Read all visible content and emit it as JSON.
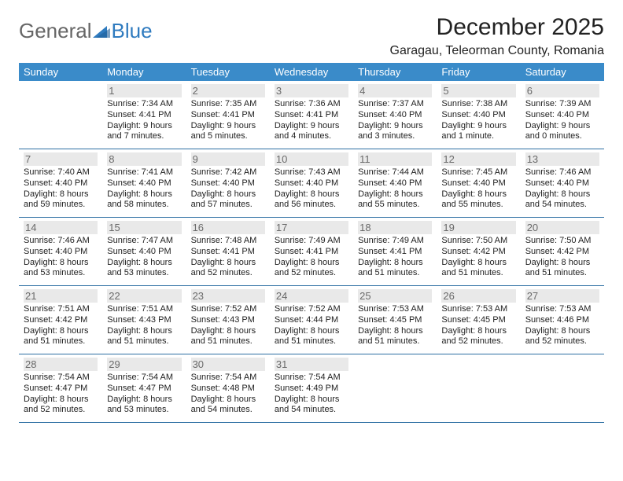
{
  "branding": {
    "word1": "General",
    "word2": "Blue",
    "triangle_color": "#2f7bbf"
  },
  "title": "December 2025",
  "location": "Garagau, Teleorman County, Romania",
  "colors": {
    "header_bg": "#3a8bc9",
    "header_text": "#ffffff",
    "daynum_bg": "#e9e9e9",
    "daynum_text": "#6a6a6a",
    "rule": "#2d6fa3",
    "body_text": "#222222",
    "page_bg": "#ffffff"
  },
  "days_of_week": [
    "Sunday",
    "Monday",
    "Tuesday",
    "Wednesday",
    "Thursday",
    "Friday",
    "Saturday"
  ],
  "weeks": [
    [
      null,
      {
        "n": "1",
        "sr": "Sunrise: 7:34 AM",
        "ss": "Sunset: 4:41 PM",
        "d1": "Daylight: 9 hours",
        "d2": "and 7 minutes."
      },
      {
        "n": "2",
        "sr": "Sunrise: 7:35 AM",
        "ss": "Sunset: 4:41 PM",
        "d1": "Daylight: 9 hours",
        "d2": "and 5 minutes."
      },
      {
        "n": "3",
        "sr": "Sunrise: 7:36 AM",
        "ss": "Sunset: 4:41 PM",
        "d1": "Daylight: 9 hours",
        "d2": "and 4 minutes."
      },
      {
        "n": "4",
        "sr": "Sunrise: 7:37 AM",
        "ss": "Sunset: 4:40 PM",
        "d1": "Daylight: 9 hours",
        "d2": "and 3 minutes."
      },
      {
        "n": "5",
        "sr": "Sunrise: 7:38 AM",
        "ss": "Sunset: 4:40 PM",
        "d1": "Daylight: 9 hours",
        "d2": "and 1 minute."
      },
      {
        "n": "6",
        "sr": "Sunrise: 7:39 AM",
        "ss": "Sunset: 4:40 PM",
        "d1": "Daylight: 9 hours",
        "d2": "and 0 minutes."
      }
    ],
    [
      {
        "n": "7",
        "sr": "Sunrise: 7:40 AM",
        "ss": "Sunset: 4:40 PM",
        "d1": "Daylight: 8 hours",
        "d2": "and 59 minutes."
      },
      {
        "n": "8",
        "sr": "Sunrise: 7:41 AM",
        "ss": "Sunset: 4:40 PM",
        "d1": "Daylight: 8 hours",
        "d2": "and 58 minutes."
      },
      {
        "n": "9",
        "sr": "Sunrise: 7:42 AM",
        "ss": "Sunset: 4:40 PM",
        "d1": "Daylight: 8 hours",
        "d2": "and 57 minutes."
      },
      {
        "n": "10",
        "sr": "Sunrise: 7:43 AM",
        "ss": "Sunset: 4:40 PM",
        "d1": "Daylight: 8 hours",
        "d2": "and 56 minutes."
      },
      {
        "n": "11",
        "sr": "Sunrise: 7:44 AM",
        "ss": "Sunset: 4:40 PM",
        "d1": "Daylight: 8 hours",
        "d2": "and 55 minutes."
      },
      {
        "n": "12",
        "sr": "Sunrise: 7:45 AM",
        "ss": "Sunset: 4:40 PM",
        "d1": "Daylight: 8 hours",
        "d2": "and 55 minutes."
      },
      {
        "n": "13",
        "sr": "Sunrise: 7:46 AM",
        "ss": "Sunset: 4:40 PM",
        "d1": "Daylight: 8 hours",
        "d2": "and 54 minutes."
      }
    ],
    [
      {
        "n": "14",
        "sr": "Sunrise: 7:46 AM",
        "ss": "Sunset: 4:40 PM",
        "d1": "Daylight: 8 hours",
        "d2": "and 53 minutes."
      },
      {
        "n": "15",
        "sr": "Sunrise: 7:47 AM",
        "ss": "Sunset: 4:40 PM",
        "d1": "Daylight: 8 hours",
        "d2": "and 53 minutes."
      },
      {
        "n": "16",
        "sr": "Sunrise: 7:48 AM",
        "ss": "Sunset: 4:41 PM",
        "d1": "Daylight: 8 hours",
        "d2": "and 52 minutes."
      },
      {
        "n": "17",
        "sr": "Sunrise: 7:49 AM",
        "ss": "Sunset: 4:41 PM",
        "d1": "Daylight: 8 hours",
        "d2": "and 52 minutes."
      },
      {
        "n": "18",
        "sr": "Sunrise: 7:49 AM",
        "ss": "Sunset: 4:41 PM",
        "d1": "Daylight: 8 hours",
        "d2": "and 51 minutes."
      },
      {
        "n": "19",
        "sr": "Sunrise: 7:50 AM",
        "ss": "Sunset: 4:42 PM",
        "d1": "Daylight: 8 hours",
        "d2": "and 51 minutes."
      },
      {
        "n": "20",
        "sr": "Sunrise: 7:50 AM",
        "ss": "Sunset: 4:42 PM",
        "d1": "Daylight: 8 hours",
        "d2": "and 51 minutes."
      }
    ],
    [
      {
        "n": "21",
        "sr": "Sunrise: 7:51 AM",
        "ss": "Sunset: 4:42 PM",
        "d1": "Daylight: 8 hours",
        "d2": "and 51 minutes."
      },
      {
        "n": "22",
        "sr": "Sunrise: 7:51 AM",
        "ss": "Sunset: 4:43 PM",
        "d1": "Daylight: 8 hours",
        "d2": "and 51 minutes."
      },
      {
        "n": "23",
        "sr": "Sunrise: 7:52 AM",
        "ss": "Sunset: 4:43 PM",
        "d1": "Daylight: 8 hours",
        "d2": "and 51 minutes."
      },
      {
        "n": "24",
        "sr": "Sunrise: 7:52 AM",
        "ss": "Sunset: 4:44 PM",
        "d1": "Daylight: 8 hours",
        "d2": "and 51 minutes."
      },
      {
        "n": "25",
        "sr": "Sunrise: 7:53 AM",
        "ss": "Sunset: 4:45 PM",
        "d1": "Daylight: 8 hours",
        "d2": "and 51 minutes."
      },
      {
        "n": "26",
        "sr": "Sunrise: 7:53 AM",
        "ss": "Sunset: 4:45 PM",
        "d1": "Daylight: 8 hours",
        "d2": "and 52 minutes."
      },
      {
        "n": "27",
        "sr": "Sunrise: 7:53 AM",
        "ss": "Sunset: 4:46 PM",
        "d1": "Daylight: 8 hours",
        "d2": "and 52 minutes."
      }
    ],
    [
      {
        "n": "28",
        "sr": "Sunrise: 7:54 AM",
        "ss": "Sunset: 4:47 PM",
        "d1": "Daylight: 8 hours",
        "d2": "and 52 minutes."
      },
      {
        "n": "29",
        "sr": "Sunrise: 7:54 AM",
        "ss": "Sunset: 4:47 PM",
        "d1": "Daylight: 8 hours",
        "d2": "and 53 minutes."
      },
      {
        "n": "30",
        "sr": "Sunrise: 7:54 AM",
        "ss": "Sunset: 4:48 PM",
        "d1": "Daylight: 8 hours",
        "d2": "and 54 minutes."
      },
      {
        "n": "31",
        "sr": "Sunrise: 7:54 AM",
        "ss": "Sunset: 4:49 PM",
        "d1": "Daylight: 8 hours",
        "d2": "and 54 minutes."
      },
      null,
      null,
      null
    ]
  ]
}
